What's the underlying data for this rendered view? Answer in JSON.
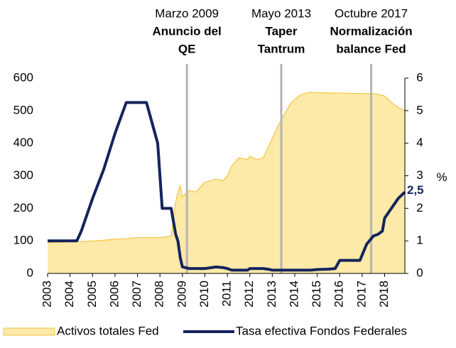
{
  "chart_data": {
    "type": "area_line",
    "x": [
      2003,
      2003.5,
      2004,
      2004.3,
      2004.5,
      2005,
      2005.5,
      2006,
      2006.5,
      2007,
      2007.4,
      2007.9,
      2008,
      2008.1,
      2008.5,
      2008.7,
      2008.8,
      2008.9,
      2009,
      2009.3,
      2009.6,
      2010,
      2010.5,
      2010.8,
      2011,
      2011.2,
      2011.5,
      2011.9,
      2012,
      2012.3,
      2012.6,
      2012.9,
      2013,
      2013.3,
      2013.8,
      2014,
      2014.3,
      2014.7,
      2015,
      2015.5,
      2015.8,
      2016,
      2016.5,
      2016.9,
      2017.2,
      2017.5,
      2017.7,
      2017.9,
      2018,
      2018.3,
      2018.6,
      2018.9
    ],
    "series": [
      {
        "name": "Activos totales Fed",
        "color": "#fde9a8",
        "edge": "#f2c744",
        "kind": "area",
        "axis": "y",
        "values": [
          95,
          96,
          97,
          98,
          98,
          100,
          102,
          105,
          107,
          110,
          110,
          110,
          110,
          111,
          115,
          220,
          250,
          270,
          235,
          255,
          250,
          280,
          290,
          285,
          300,
          330,
          355,
          350,
          360,
          350,
          355,
          400,
          415,
          460,
          520,
          535,
          550,
          557,
          555,
          555,
          554,
          554,
          553,
          553,
          552,
          552,
          551,
          547,
          545,
          525,
          510,
          500
        ]
      },
      {
        "name": "Tasa efectiva Fondos Federales",
        "color": "#14245c",
        "kind": "line",
        "axis": "y2",
        "values": [
          1.0,
          1.0,
          1.0,
          1.0,
          1.3,
          2.3,
          3.2,
          4.3,
          5.25,
          5.25,
          5.25,
          4.0,
          3.0,
          2.0,
          2.0,
          1.2,
          1.0,
          0.5,
          0.2,
          0.15,
          0.15,
          0.15,
          0.2,
          0.18,
          0.15,
          0.1,
          0.1,
          0.1,
          0.15,
          0.15,
          0.15,
          0.12,
          0.1,
          0.1,
          0.1,
          0.1,
          0.1,
          0.1,
          0.12,
          0.13,
          0.15,
          0.4,
          0.4,
          0.4,
          0.9,
          1.15,
          1.2,
          1.3,
          1.7,
          2.0,
          2.3,
          2.5
        ],
        "end_label": "2,5"
      }
    ],
    "xlim": [
      2003,
      2018.9
    ],
    "xticks": [
      2003,
      2004,
      2005,
      2006,
      2007,
      2008,
      2009,
      2010,
      2011,
      2012,
      2013,
      2014,
      2015,
      2016,
      2017,
      2018
    ],
    "ylim": [
      0,
      600
    ],
    "yticks": [
      0,
      100,
      200,
      300,
      400,
      500,
      600
    ],
    "y2lim": [
      0,
      6
    ],
    "y2ticks": [
      0,
      1,
      2,
      3,
      4,
      5,
      6
    ],
    "y2label": "%",
    "annotations": [
      {
        "x": 2009.2,
        "date": "Marzo 2009",
        "lines": [
          "Anuncio del",
          "QE"
        ]
      },
      {
        "x": 2013.4,
        "date": "Mayo 2013",
        "lines": [
          "Taper",
          "Tantrum"
        ]
      },
      {
        "x": 2017.4,
        "date": "Octubre 2017",
        "lines": [
          "Normalización",
          "balance Fed"
        ]
      }
    ]
  }
}
